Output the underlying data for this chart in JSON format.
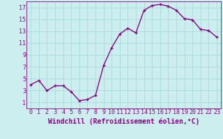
{
  "x": [
    0,
    1,
    2,
    3,
    4,
    5,
    6,
    7,
    8,
    9,
    10,
    11,
    12,
    13,
    14,
    15,
    16,
    17,
    18,
    19,
    20,
    21,
    22,
    23
  ],
  "y": [
    4.0,
    4.7,
    3.0,
    3.8,
    3.8,
    2.8,
    1.3,
    1.5,
    2.2,
    7.2,
    10.2,
    12.5,
    13.5,
    12.7,
    16.5,
    17.3,
    17.5,
    17.2,
    16.5,
    15.1,
    14.9,
    13.3,
    13.1,
    12.0
  ],
  "line_color": "#880088",
  "marker": "+",
  "marker_size": 3,
  "bg_color": "#cceeee",
  "grid_color": "#aadddd",
  "xlabel": "Windchill (Refroidissement éolien,°C)",
  "xlim": [
    -0.5,
    23.5
  ],
  "ylim": [
    0,
    18
  ],
  "yticks": [
    1,
    3,
    5,
    7,
    9,
    11,
    13,
    15,
    17
  ],
  "xtick_labels": [
    "0",
    "1",
    "2",
    "3",
    "4",
    "5",
    "6",
    "7",
    "8",
    "9",
    "10",
    "11",
    "12",
    "13",
    "14",
    "15",
    "16",
    "17",
    "18",
    "19",
    "20",
    "21",
    "22",
    "23"
  ],
  "xlabel_fontsize": 7,
  "tick_fontsize": 6,
  "linewidth": 1.0
}
